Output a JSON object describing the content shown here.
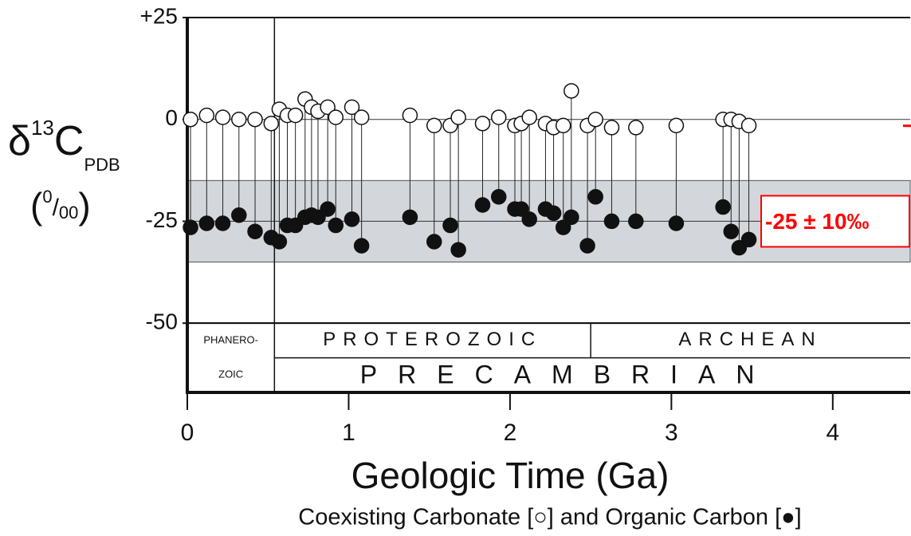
{
  "chart_data": {
    "type": "scatter",
    "xlabel": "Geologic Time (Ga)",
    "subtitle": "Coexisting Carbonate [○] and Organic Carbon [●]",
    "ylabel": {
      "delta": "δ",
      "sup": "13",
      "element": "C",
      "sub": "PDB",
      "open": "(",
      "unit_sup": "0",
      "unit_slash": "/",
      "unit_sub": "00",
      "close": ")"
    },
    "xlim": [
      0,
      4.48
    ],
    "ylim": [
      -67,
      25
    ],
    "xticks": [
      0,
      1,
      2,
      3,
      4
    ],
    "yticks": [
      {
        "value": 25,
        "label": "+25"
      },
      0,
      -25,
      -50
    ],
    "x": [
      0.02,
      0.12,
      0.22,
      0.32,
      0.42,
      0.52,
      0.57,
      0.62,
      0.67,
      0.73,
      0.77,
      0.81,
      0.87,
      0.92,
      1.02,
      1.08,
      1.38,
      1.53,
      1.63,
      1.68,
      1.83,
      1.93,
      2.03,
      2.07,
      2.12,
      2.22,
      2.27,
      2.33,
      2.38,
      2.48,
      2.53,
      2.63,
      2.78,
      3.03,
      3.32,
      3.37,
      3.42,
      3.48
    ],
    "series": [
      {
        "marker": "open",
        "color": "#ffffff",
        "values": [
          0,
          1,
          0.5,
          0,
          0,
          -1,
          2.5,
          1,
          1,
          5,
          3,
          2,
          3,
          0.5,
          3,
          0.5,
          1,
          -1.5,
          -1.5,
          0.5,
          -1,
          0.5,
          -1.5,
          -1,
          0.5,
          -1,
          -2,
          -1.5,
          7,
          -1.5,
          0,
          -2,
          -2,
          -1.5,
          0,
          0,
          -0.5,
          -1.5
        ]
      },
      {
        "marker": "filled",
        "color": "#111111",
        "values": [
          -26.5,
          -25.5,
          -25.5,
          -23.5,
          -27.5,
          -29,
          -30,
          -26,
          -26,
          -24,
          -23.5,
          -24,
          -22,
          -26,
          -24.5,
          -31,
          -24,
          -30,
          -26,
          -32,
          -21,
          -19,
          -22,
          -22,
          -24.5,
          -22,
          -23,
          -26.5,
          -24,
          -31,
          -19,
          -25,
          -25,
          -25.5,
          -21.5,
          -27.5,
          -31.5,
          -29.5
        ]
      }
    ],
    "band": [
      -35,
      -15
    ],
    "band_color": "#d3d6da",
    "reference_lines": [
      0,
      -25
    ],
    "annotation": "-25 ± 10‰",
    "annotation_color": "#ff0000",
    "eons_top": [
      {
        "label": [
          "PHANERO-",
          "ZOIC"
        ],
        "start": 0,
        "end": 0.54
      },
      {
        "label": [
          "PROTEROZOIC"
        ],
        "start": 0.54,
        "end": 2.5
      },
      {
        "label": [
          "ARCHEAN"
        ],
        "start": 2.5,
        "end": 4.48
      }
    ],
    "eons_bottom": [
      {
        "label": [
          "PRECAMBRIAN"
        ],
        "start": 0.54,
        "end": 4.48
      }
    ]
  }
}
